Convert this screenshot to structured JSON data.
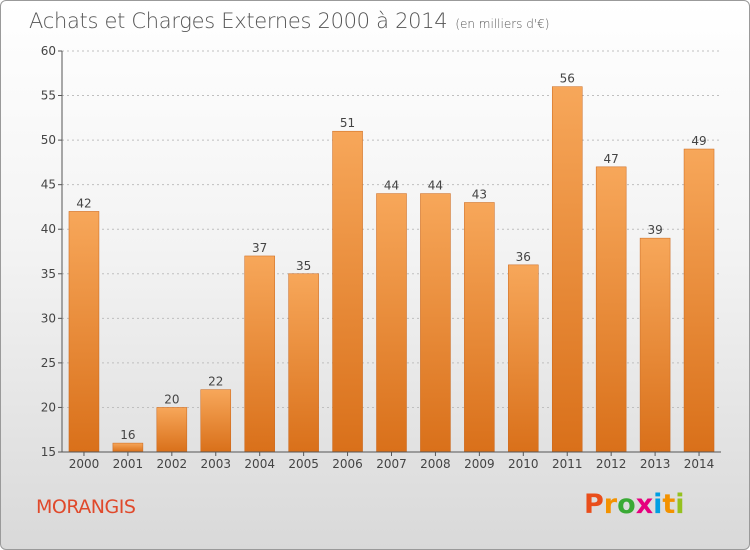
{
  "title": "Achats et Charges Externes 2000 à 2014",
  "subtitle": "(en milliers d'€)",
  "city": "MORANGIS",
  "brand": {
    "letters": [
      "P",
      "r",
      "o",
      "x",
      "i",
      "t",
      "i"
    ],
    "colors": [
      "#e94e1b",
      "#f39200",
      "#3aaa35",
      "#e6007e",
      "#009fe3",
      "#f39200",
      "#95c11f"
    ]
  },
  "colors": {
    "bar_top": "#f7a75a",
    "bar_bottom": "#d9701a",
    "axis": "#555555",
    "grid": "#bfbfbf"
  },
  "chart_data": {
    "type": "bar",
    "categories": [
      "2000",
      "2001",
      "2002",
      "2003",
      "2004",
      "2005",
      "2006",
      "2007",
      "2008",
      "2009",
      "2010",
      "2011",
      "2012",
      "2013",
      "2014"
    ],
    "values": [
      42,
      16,
      20,
      22,
      37,
      35,
      51,
      44,
      44,
      43,
      36,
      56,
      47,
      39,
      49
    ],
    "ylim": [
      15,
      60
    ],
    "yticks": [
      15,
      20,
      25,
      30,
      35,
      40,
      45,
      50,
      55,
      60
    ],
    "grid": true,
    "xlabel": "",
    "ylabel": ""
  }
}
